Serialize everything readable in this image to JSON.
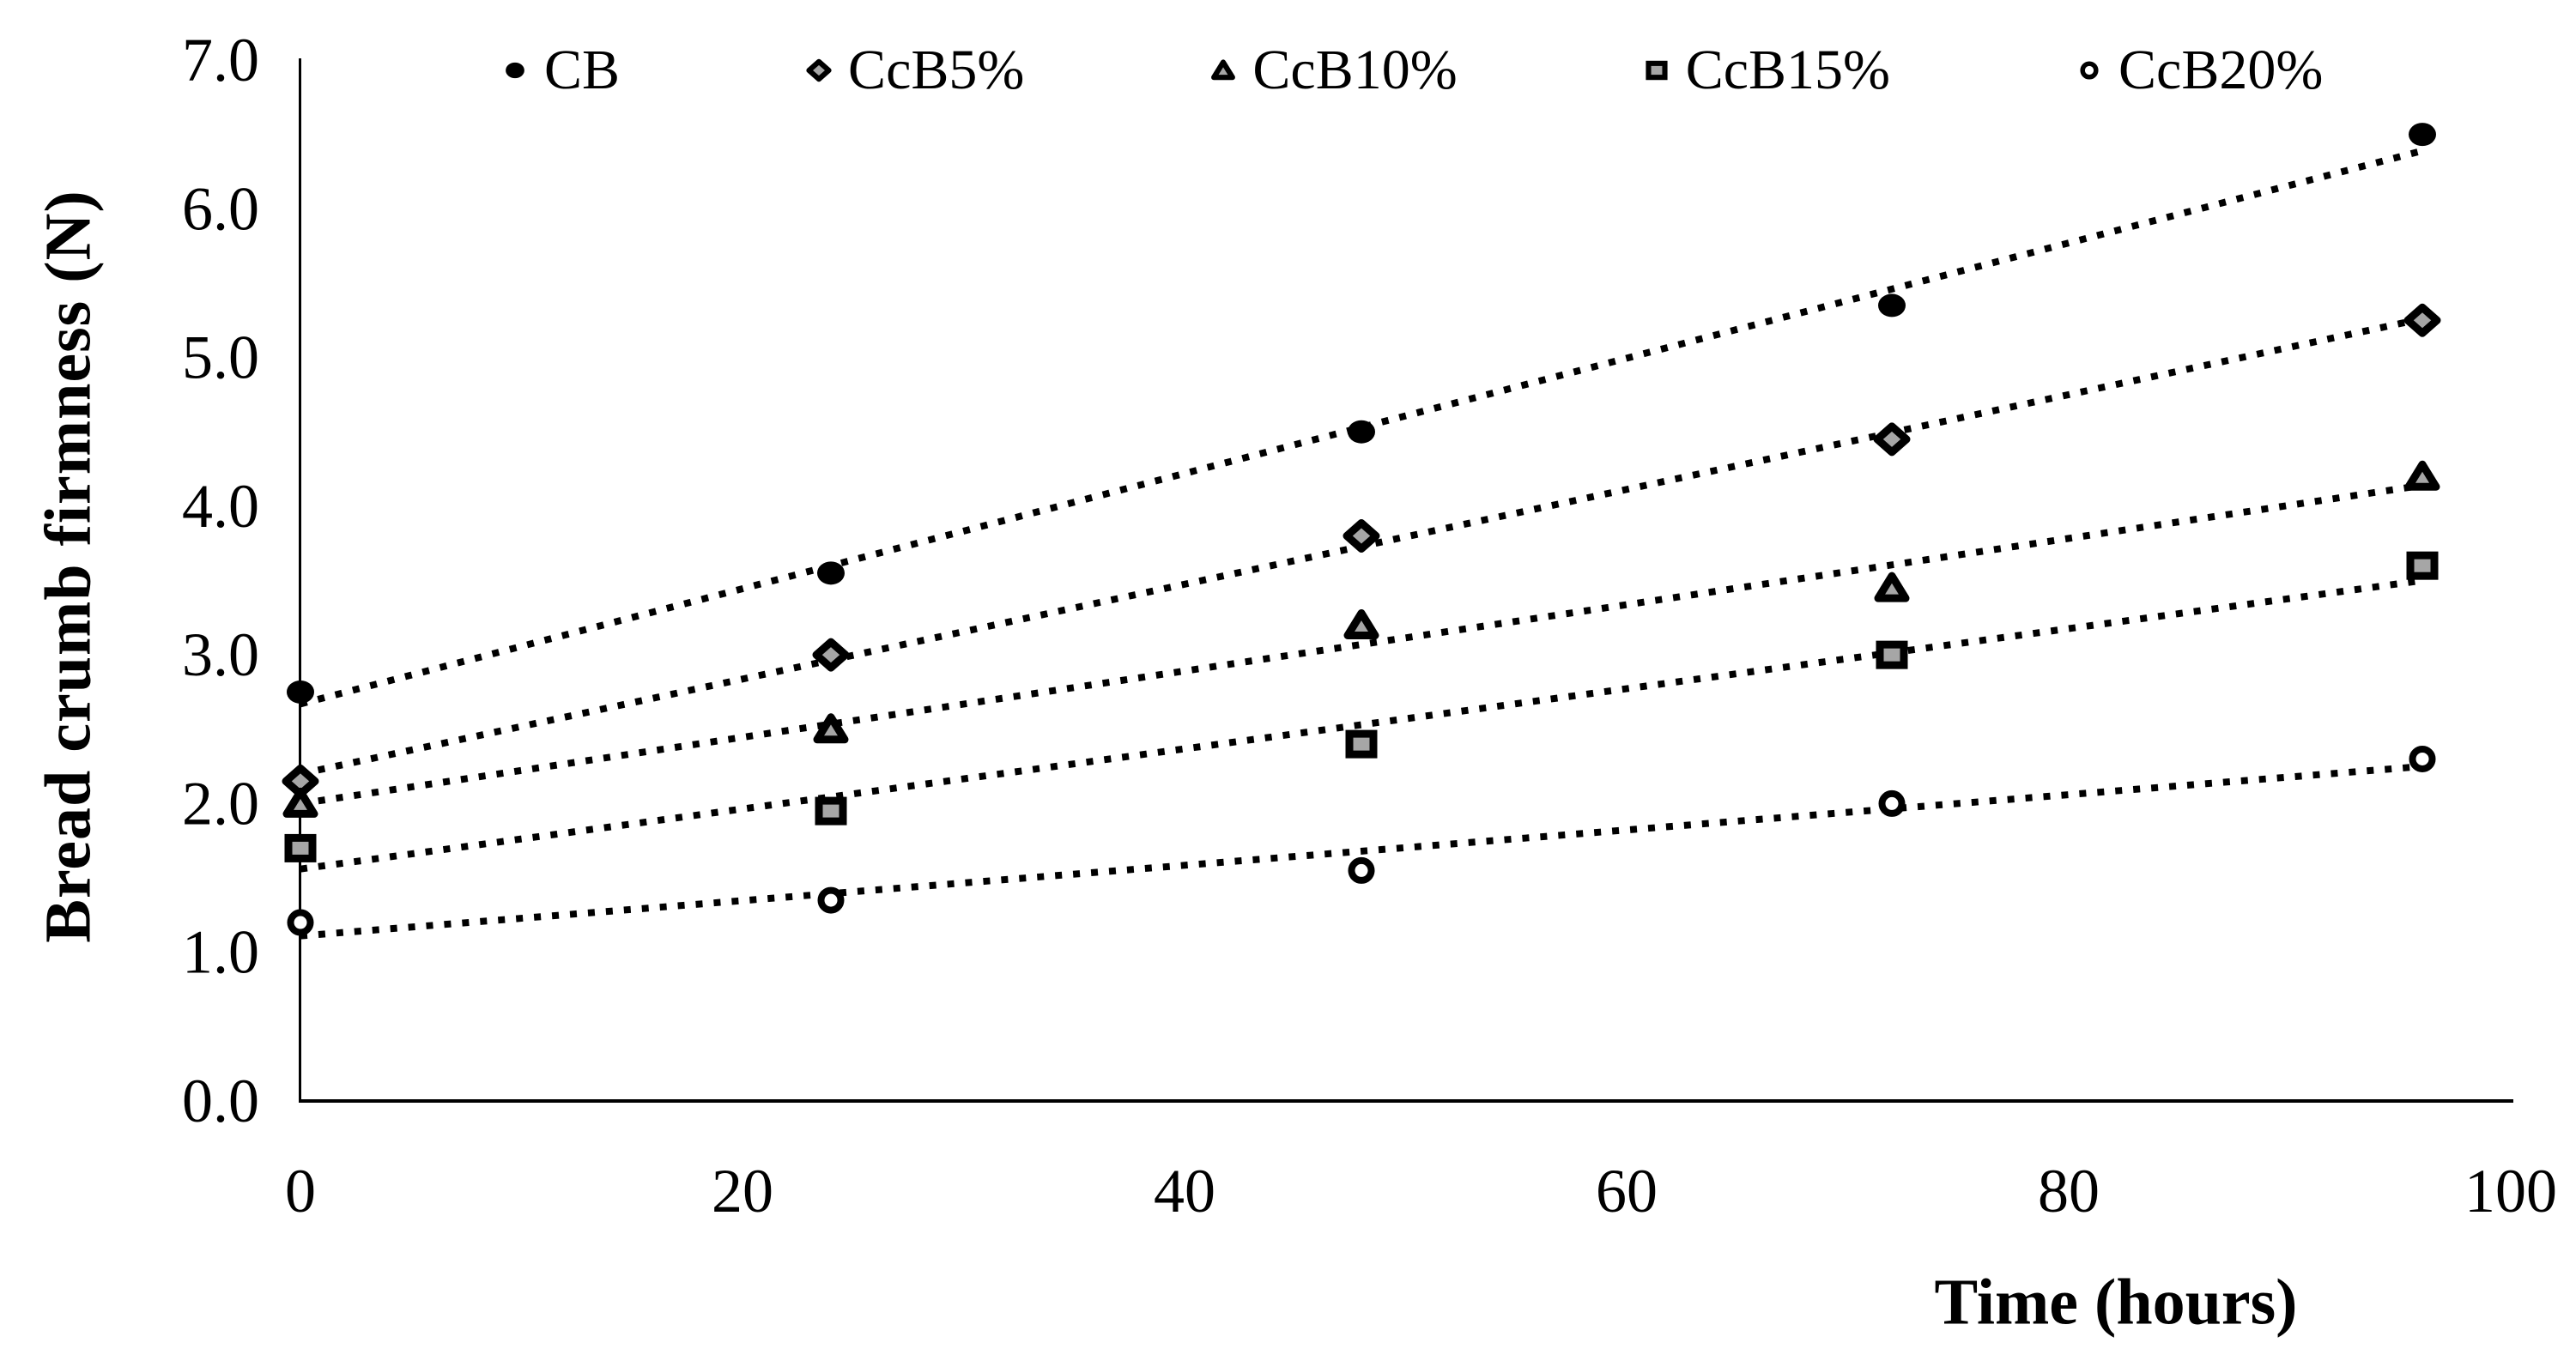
{
  "chart_data": {
    "type": "scatter",
    "xlabel": "Time (hours)",
    "ylabel": "Bread crumb firmness (N)",
    "xlim": [
      0,
      100
    ],
    "ylim": [
      0.0,
      7.0
    ],
    "xticks": [
      0,
      20,
      40,
      60,
      80,
      100
    ],
    "xtick_labels": [
      "0",
      "20",
      "40",
      "60",
      "80",
      "100"
    ],
    "yticks": [
      0,
      1,
      2,
      3,
      4,
      5,
      6,
      7
    ],
    "ytick_labels": [
      "0.0",
      "1.0",
      "2.0",
      "3.0",
      "4.0",
      "5.0",
      "6.0",
      "7.0"
    ],
    "grid": false,
    "legend_position": "top",
    "x": [
      0,
      24,
      48,
      72,
      96
    ],
    "series": [
      {
        "name": "CB",
        "marker": "filled-circle",
        "fill": "#000000",
        "values": [
          2.75,
          3.55,
          4.5,
          5.35,
          6.5
        ],
        "trendline": "linear-dotted"
      },
      {
        "name": "CcB5%",
        "marker": "diamond",
        "fill": "#A6A6A6",
        "values": [
          2.15,
          3.0,
          3.8,
          4.45,
          5.25
        ],
        "trendline": "linear-dotted"
      },
      {
        "name": "CcB10%",
        "marker": "triangle",
        "fill": "#A6A6A6",
        "values": [
          2.0,
          2.5,
          3.2,
          3.45,
          4.2
        ],
        "trendline": "linear-dotted"
      },
      {
        "name": "CcB15%",
        "marker": "square",
        "fill": "#A6A6A6",
        "values": [
          1.7,
          1.95,
          2.4,
          3.0,
          3.6
        ],
        "trendline": "linear-dotted"
      },
      {
        "name": "CcB20%",
        "marker": "open-circle",
        "fill": "#FFFFFF",
        "values": [
          1.2,
          1.35,
          1.55,
          2.0,
          2.3
        ],
        "trendline": "linear-dotted"
      }
    ],
    "colors": {
      "line": "#000000",
      "text": "#000000",
      "marker_gray": "#A6A6A6",
      "background": "#FFFFFF"
    }
  }
}
